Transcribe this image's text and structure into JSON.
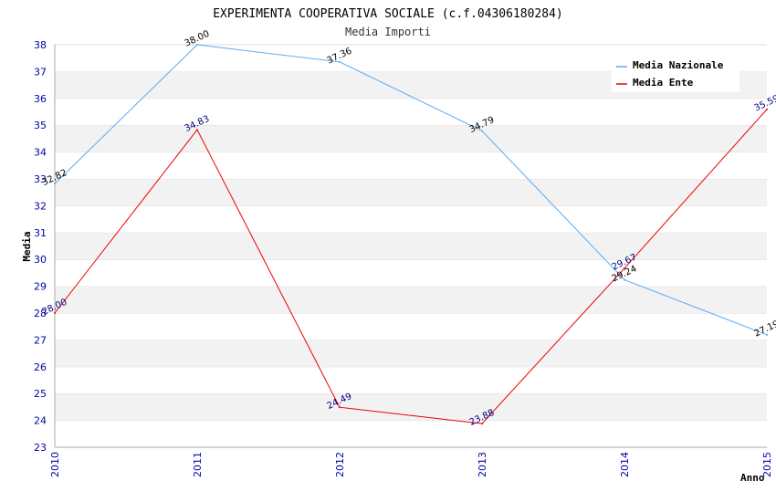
{
  "title": "EXPERIMENTA COOPERATIVA SOCIALE (c.f.04306180284)",
  "subtitle": "Media Importi",
  "chart_data": {
    "type": "line",
    "title": "EXPERIMENTA COOPERATIVA SOCIALE (c.f.04306180284)",
    "subtitle": "Media Importi",
    "xlabel": "Anno",
    "ylabel": "Media",
    "x": [
      "2010",
      "2011",
      "2012",
      "2013",
      "2014",
      "2015"
    ],
    "ylim": [
      23,
      38
    ],
    "yticks": [
      "23",
      "24",
      "25",
      "26",
      "27",
      "28",
      "29",
      "30",
      "31",
      "32",
      "33",
      "34",
      "35",
      "36",
      "37",
      "38"
    ],
    "grid": "horizontal alternating bands",
    "legend_position": "top-right",
    "series": [
      {
        "name": "Media Nazionale",
        "color": "#5aaaf0",
        "label_color": "#000000",
        "values": [
          32.82,
          38.0,
          37.36,
          34.79,
          29.24,
          27.19
        ],
        "labels": [
          "32.82",
          "38.00",
          "37.36",
          "34.79",
          "29.24",
          "27.19"
        ]
      },
      {
        "name": "Media Ente",
        "color": "#ee0000",
        "label_color": "#000080",
        "values": [
          28.0,
          34.83,
          24.49,
          23.88,
          29.67,
          35.59
        ],
        "labels": [
          "28.00",
          "34.83",
          "24.49",
          "23.88",
          "29.67",
          "35.59"
        ]
      }
    ]
  }
}
